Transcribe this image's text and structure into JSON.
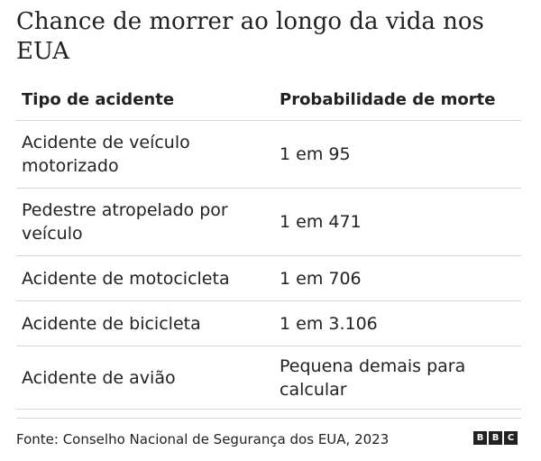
{
  "chart_data": {
    "type": "table",
    "title": "Chance de morrer ao longo da vida nos EUA",
    "columns": [
      "Tipo de acidente",
      "Probabilidade de morte"
    ],
    "rows": [
      [
        "Acidente de veículo motorizado",
        "1 em 95"
      ],
      [
        "Pedestre atropelado por veículo",
        "1 em 471"
      ],
      [
        "Acidente de motocicleta",
        "1 em 706"
      ],
      [
        "Acidente de bicicleta",
        "1 em 3.106"
      ],
      [
        "Acidente de avião",
        "Pequena demais para calcular"
      ]
    ]
  },
  "footer": {
    "source": "Fonte: Conselho Nacional de Segurança dos EUA, 2023",
    "logo_letters": [
      "B",
      "B",
      "C"
    ]
  },
  "colors": {
    "text": "#222222",
    "rule": "#d6d6d6",
    "logo_bg": "#222222"
  }
}
